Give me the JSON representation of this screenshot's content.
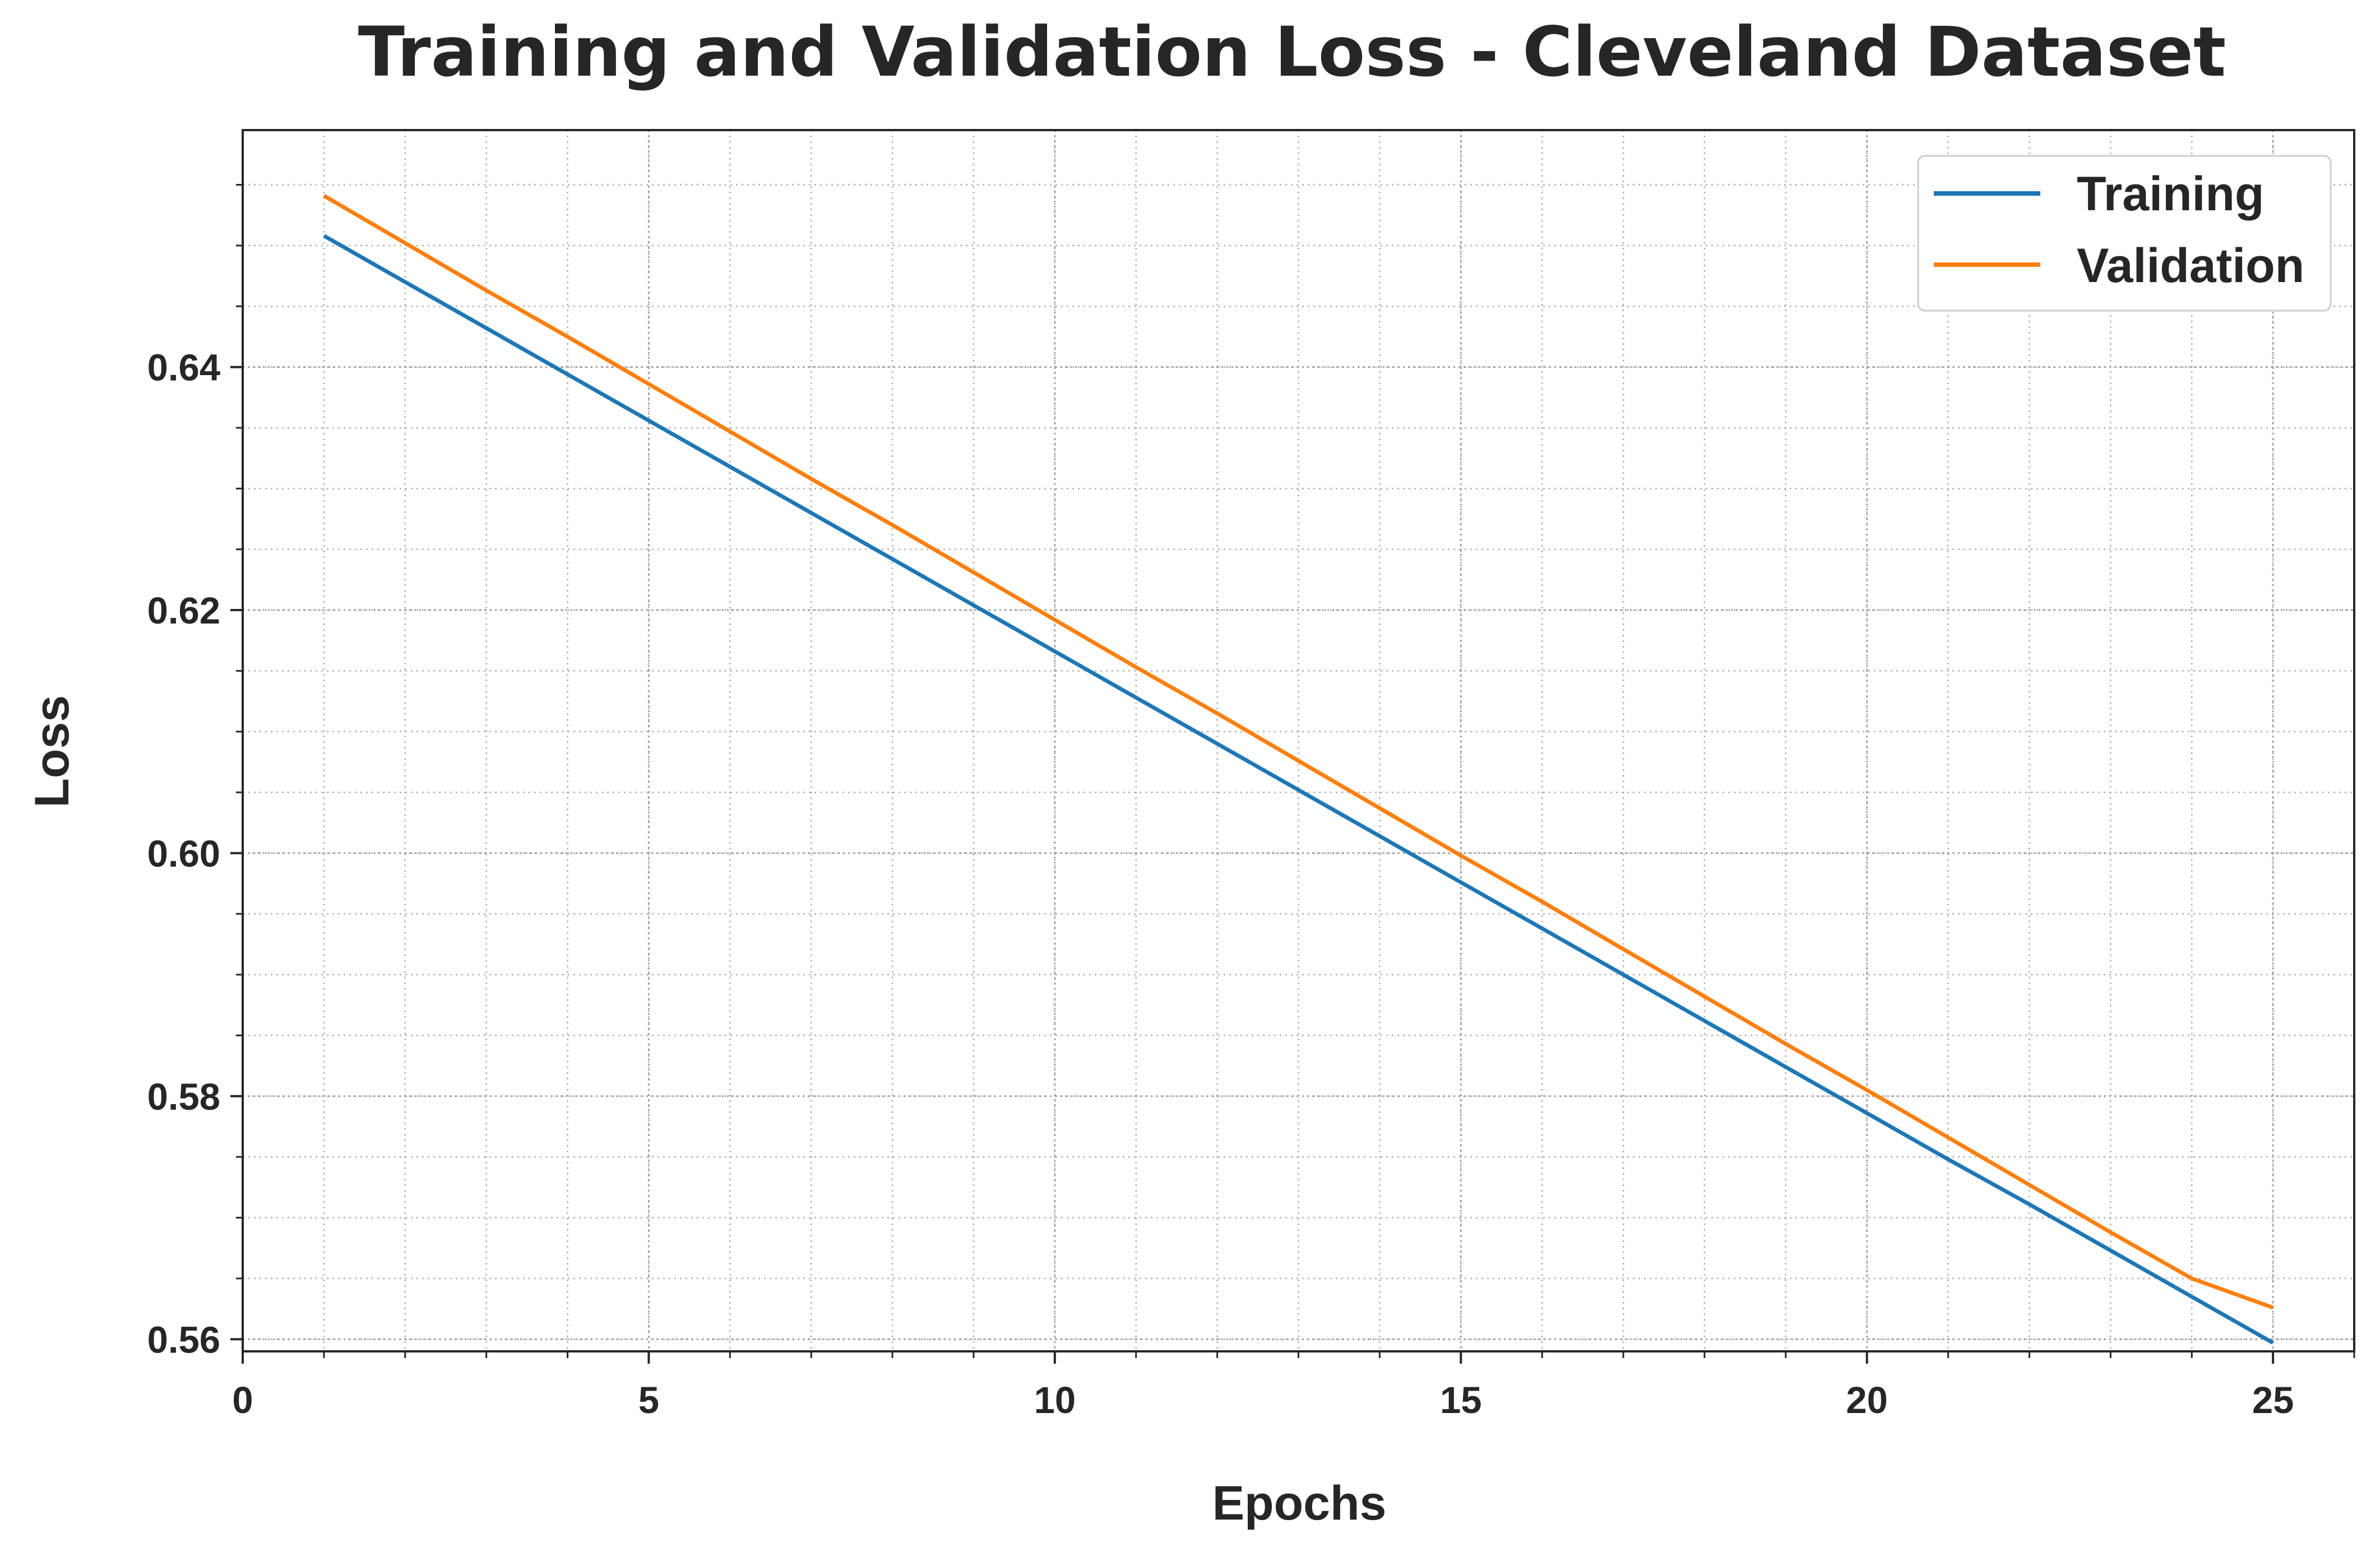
{
  "chart_data": {
    "type": "line",
    "title": "Training and Validation Loss - Cleveland Dataset",
    "xlabel": "Epochs",
    "ylabel": "Loss",
    "xlim": [
      0,
      26
    ],
    "ylim": [
      0.559,
      0.6595
    ],
    "xticks": [
      0,
      5,
      10,
      15,
      20,
      25
    ],
    "xtick_labels": [
      "0",
      "5",
      "10",
      "15",
      "20",
      "25"
    ],
    "yticks": [
      0.56,
      0.58,
      0.6,
      0.62,
      0.64
    ],
    "ytick_labels": [
      "0.56",
      "0.58",
      "0.60",
      "0.62",
      "0.64"
    ],
    "x_minor_step": 1,
    "y_minor_step": 0.005,
    "grid": true,
    "legend_position": "top-right",
    "x": [
      1,
      2,
      3,
      4,
      5,
      6,
      7,
      8,
      9,
      10,
      11,
      12,
      13,
      14,
      15,
      16,
      17,
      18,
      19,
      20,
      21,
      22,
      23,
      24,
      25
    ],
    "series": [
      {
        "name": "Training",
        "color": "#1f77b4",
        "values": [
          0.6508,
          0.647,
          0.6432,
          0.6394,
          0.6356,
          0.6318,
          0.628,
          0.6242,
          0.6204,
          0.6166,
          0.6128,
          0.609,
          0.6052,
          0.6014,
          0.5976,
          0.5938,
          0.59,
          0.5862,
          0.5824,
          0.5786,
          0.5748,
          0.5711,
          0.5673,
          0.5635,
          0.5597
        ]
      },
      {
        "name": "Validation",
        "color": "#ff7f0e",
        "values": [
          0.6541,
          0.6502,
          0.6463,
          0.6425,
          0.6386,
          0.6347,
          0.6308,
          0.627,
          0.6231,
          0.6192,
          0.6153,
          0.6115,
          0.6076,
          0.6037,
          0.5998,
          0.596,
          0.5921,
          0.5882,
          0.5843,
          0.5805,
          0.5766,
          0.5727,
          0.5688,
          0.565,
          0.5626
        ]
      }
    ]
  }
}
